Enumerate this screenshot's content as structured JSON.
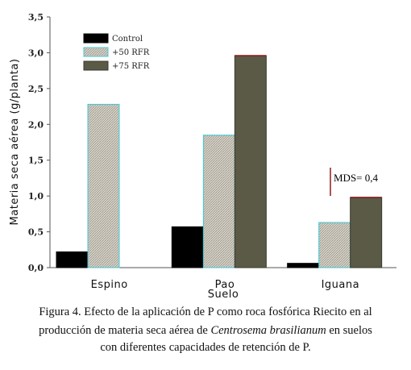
{
  "chart_data": {
    "type": "bar",
    "ylabel": "Materia seca aérea (g/planta)",
    "xlabel": "Suelo",
    "ylim": [
      0,
      3.5
    ],
    "yticks": [
      "0,0",
      "0,5",
      "1,0",
      "1,5",
      "2,0",
      "2,5",
      "3,0",
      "3,5"
    ],
    "categories": [
      "Espino",
      "Pao",
      "Iguana"
    ],
    "series": [
      {
        "name": "Control",
        "values": [
          0.22,
          0.57,
          0.06
        ],
        "color": "#000000"
      },
      {
        "name": "+50 RFR",
        "values": [
          2.28,
          1.85,
          0.63
        ],
        "color": "#d4d0c6"
      },
      {
        "name": "+75 RFR",
        "values": [
          null,
          2.96,
          0.98
        ],
        "color": "#5a5a47"
      }
    ],
    "legend_position": "top-left",
    "grid": false,
    "annotations": [
      {
        "text": "MDS= 0,4"
      }
    ]
  },
  "caption": {
    "line1": "Figura 4. Efecto de la aplicación de P como roca fosfórica Riecito en al",
    "line2_pre": "producción de materia seca aérea de ",
    "line2_italic": "Centrosema brasilianum",
    "line2_post": " en suelos",
    "line3": "con diferentes capacidades de retención de P."
  }
}
